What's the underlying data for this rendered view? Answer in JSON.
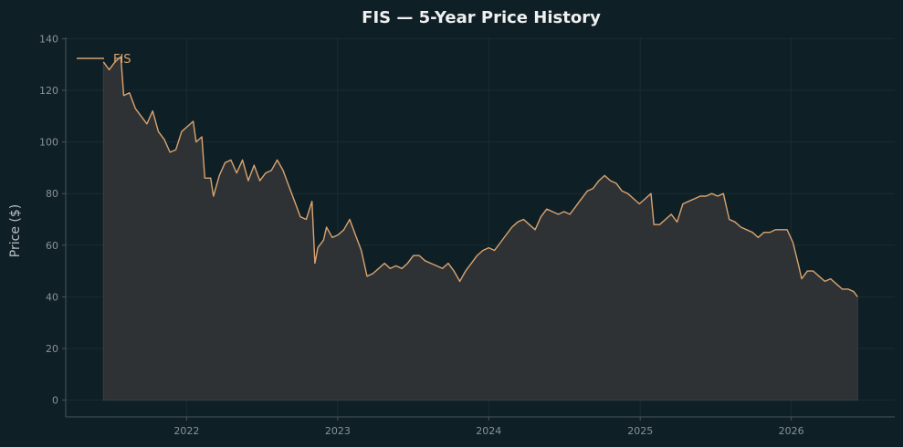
{
  "chart_data": {
    "type": "area",
    "title": "FIS — 5-Year Price History",
    "xlabel": "",
    "ylabel": "Price ($)",
    "xlim": [
      "2021-03-15",
      "2026-09-08"
    ],
    "ylim": [
      -6.5,
      140.5
    ],
    "x_ticks": [
      "2022",
      "2023",
      "2024",
      "2025",
      "2026"
    ],
    "x_tick_dates": [
      "2022-01-01",
      "2023-01-01",
      "2024-01-01",
      "2025-01-01",
      "2026-01-01"
    ],
    "y_ticks": [
      0,
      20,
      40,
      60,
      80,
      100,
      120,
      140
    ],
    "grid": true,
    "legend_position": "top-left",
    "colors": {
      "background": "#0f1f26",
      "line": "#d9a36f",
      "fill": "#2e3234",
      "axis": "#4a565c",
      "tick_text": "#8a9296",
      "title_text": "#f0f0f0",
      "grid": "#1a2c33"
    },
    "series": [
      {
        "name": "FIS",
        "points": [
          [
            "2021-06-14",
            131
          ],
          [
            "2021-06-28",
            128
          ],
          [
            "2021-07-12",
            131
          ],
          [
            "2021-07-26",
            133
          ],
          [
            "2021-08-02",
            118
          ],
          [
            "2021-08-16",
            119
          ],
          [
            "2021-08-30",
            113
          ],
          [
            "2021-09-13",
            110
          ],
          [
            "2021-09-27",
            107
          ],
          [
            "2021-10-11",
            112
          ],
          [
            "2021-10-25",
            104
          ],
          [
            "2021-11-08",
            101
          ],
          [
            "2021-11-22",
            96
          ],
          [
            "2021-12-06",
            97
          ],
          [
            "2021-12-20",
            104
          ],
          [
            "2022-01-03",
            106
          ],
          [
            "2022-01-17",
            108
          ],
          [
            "2022-01-24",
            100
          ],
          [
            "2022-02-07",
            102
          ],
          [
            "2022-02-14",
            86
          ],
          [
            "2022-02-28",
            86
          ],
          [
            "2022-03-07",
            79
          ],
          [
            "2022-03-21",
            87
          ],
          [
            "2022-04-04",
            92
          ],
          [
            "2022-04-18",
            93
          ],
          [
            "2022-05-02",
            88
          ],
          [
            "2022-05-16",
            93
          ],
          [
            "2022-05-30",
            85
          ],
          [
            "2022-06-13",
            91
          ],
          [
            "2022-06-27",
            85
          ],
          [
            "2022-07-11",
            88
          ],
          [
            "2022-07-25",
            89
          ],
          [
            "2022-08-08",
            93
          ],
          [
            "2022-08-22",
            89
          ],
          [
            "2022-09-05",
            83
          ],
          [
            "2022-09-19",
            77
          ],
          [
            "2022-10-03",
            71
          ],
          [
            "2022-10-17",
            70
          ],
          [
            "2022-10-31",
            77
          ],
          [
            "2022-11-07",
            53
          ],
          [
            "2022-11-14",
            59
          ],
          [
            "2022-11-28",
            62
          ],
          [
            "2022-12-05",
            67
          ],
          [
            "2022-12-19",
            63
          ],
          [
            "2023-01-02",
            64
          ],
          [
            "2023-01-16",
            66
          ],
          [
            "2023-01-30",
            70
          ],
          [
            "2023-02-13",
            64
          ],
          [
            "2023-02-27",
            58
          ],
          [
            "2023-03-13",
            48
          ],
          [
            "2023-03-27",
            49
          ],
          [
            "2023-04-10",
            51
          ],
          [
            "2023-04-24",
            53
          ],
          [
            "2023-05-08",
            51
          ],
          [
            "2023-05-22",
            52
          ],
          [
            "2023-06-05",
            51
          ],
          [
            "2023-06-19",
            53
          ],
          [
            "2023-07-03",
            56
          ],
          [
            "2023-07-17",
            56
          ],
          [
            "2023-07-31",
            54
          ],
          [
            "2023-08-14",
            53
          ],
          [
            "2023-08-28",
            52
          ],
          [
            "2023-09-11",
            51
          ],
          [
            "2023-09-25",
            53
          ],
          [
            "2023-10-09",
            50
          ],
          [
            "2023-10-23",
            46
          ],
          [
            "2023-11-06",
            50
          ],
          [
            "2023-11-20",
            53
          ],
          [
            "2023-12-04",
            56
          ],
          [
            "2023-12-18",
            58
          ],
          [
            "2024-01-01",
            59
          ],
          [
            "2024-01-15",
            58
          ],
          [
            "2024-01-29",
            61
          ],
          [
            "2024-02-12",
            64
          ],
          [
            "2024-02-26",
            67
          ],
          [
            "2024-03-11",
            69
          ],
          [
            "2024-03-25",
            70
          ],
          [
            "2024-04-08",
            68
          ],
          [
            "2024-04-22",
            66
          ],
          [
            "2024-05-06",
            71
          ],
          [
            "2024-05-20",
            74
          ],
          [
            "2024-06-03",
            73
          ],
          [
            "2024-06-17",
            72
          ],
          [
            "2024-07-01",
            73
          ],
          [
            "2024-07-15",
            72
          ],
          [
            "2024-07-29",
            75
          ],
          [
            "2024-08-12",
            78
          ],
          [
            "2024-08-26",
            81
          ],
          [
            "2024-09-09",
            82
          ],
          [
            "2024-09-23",
            85
          ],
          [
            "2024-10-07",
            87
          ],
          [
            "2024-10-21",
            85
          ],
          [
            "2024-11-04",
            84
          ],
          [
            "2024-11-18",
            81
          ],
          [
            "2024-12-02",
            80
          ],
          [
            "2024-12-16",
            78
          ],
          [
            "2024-12-30",
            76
          ],
          [
            "2025-01-13",
            78
          ],
          [
            "2025-01-27",
            80
          ],
          [
            "2025-02-03",
            68
          ],
          [
            "2025-02-17",
            68
          ],
          [
            "2025-03-03",
            70
          ],
          [
            "2025-03-17",
            72
          ],
          [
            "2025-03-31",
            69
          ],
          [
            "2025-04-14",
            76
          ],
          [
            "2025-04-28",
            77
          ],
          [
            "2025-05-12",
            78
          ],
          [
            "2025-05-26",
            79
          ],
          [
            "2025-06-09",
            79
          ],
          [
            "2025-06-23",
            80
          ],
          [
            "2025-07-07",
            79
          ],
          [
            "2025-07-21",
            80
          ],
          [
            "2025-08-04",
            70
          ],
          [
            "2025-08-18",
            69
          ],
          [
            "2025-09-01",
            67
          ],
          [
            "2025-09-15",
            66
          ],
          [
            "2025-09-29",
            65
          ],
          [
            "2025-10-13",
            63
          ],
          [
            "2025-10-27",
            65
          ],
          [
            "2025-11-10",
            65
          ],
          [
            "2025-11-24",
            66
          ],
          [
            "2025-12-08",
            66
          ],
          [
            "2025-12-22",
            66
          ],
          [
            "2026-01-05",
            61
          ],
          [
            "2026-01-19",
            52
          ],
          [
            "2026-01-26",
            47
          ],
          [
            "2026-02-09",
            50
          ],
          [
            "2026-02-23",
            50
          ],
          [
            "2026-03-09",
            48
          ],
          [
            "2026-03-23",
            46
          ],
          [
            "2026-04-06",
            47
          ],
          [
            "2026-04-20",
            45
          ],
          [
            "2026-05-04",
            43
          ],
          [
            "2026-05-18",
            43
          ],
          [
            "2026-06-01",
            42
          ],
          [
            "2026-06-10",
            40
          ]
        ]
      }
    ]
  }
}
